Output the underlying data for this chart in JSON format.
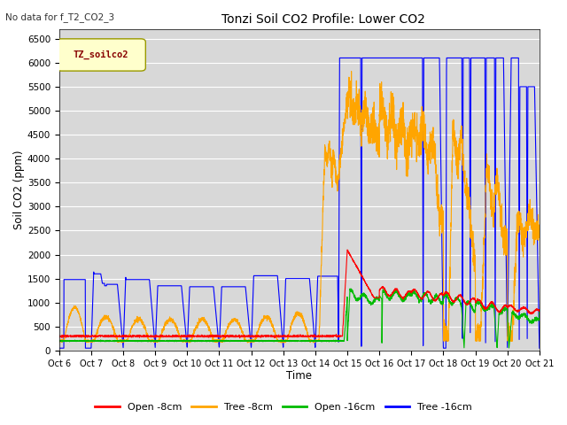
{
  "title": "Tonzi Soil CO2 Profile: Lower CO2",
  "note": "No data for f_T2_CO2_3",
  "xlabel": "Time",
  "ylabel": "Soil CO2 (ppm)",
  "legend_label": "TZ_soilco2",
  "series_labels": [
    "Open -8cm",
    "Tree -8cm",
    "Open -16cm",
    "Tree -16cm"
  ],
  "series_colors": [
    "#ff0000",
    "#ffa500",
    "#00bb00",
    "#0000ff"
  ],
  "ylim": [
    0,
    6700
  ],
  "background_color": "#d8d8d8",
  "grid_color": "#ffffff",
  "tick_labels": [
    "Oct 6",
    "Oct 7",
    "Oct 8",
    "Oct 9",
    "Oct 10",
    "Oct 11",
    "Oct 12",
    "Oct 13",
    "Oct 14",
    "Oct 15",
    "Oct 16",
    "Oct 17",
    "Oct 18",
    "Oct 19",
    "Oct 20",
    "Oct 21"
  ],
  "yticks": [
    0,
    500,
    1000,
    1500,
    2000,
    2500,
    3000,
    3500,
    4000,
    4500,
    5000,
    5500,
    6000,
    6500
  ]
}
